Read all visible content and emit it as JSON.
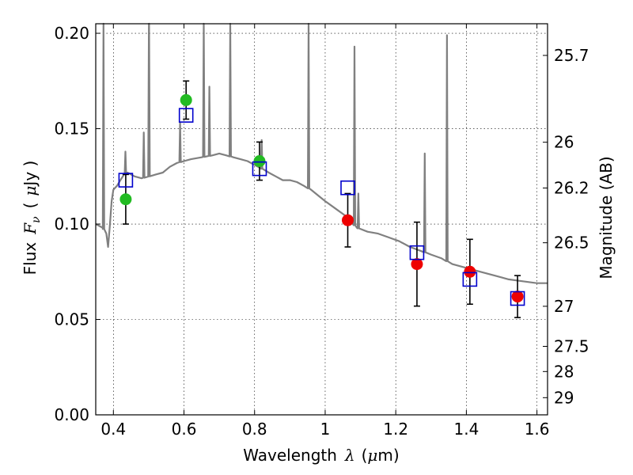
{
  "chart_data": {
    "type": "scatter",
    "title": "",
    "xlabel": {
      "prefix": "Wavelength",
      "symbol": "λ",
      "unit_open": "(",
      "unit_mu": "μ",
      "unit_rest": "m)"
    },
    "ylabel": {
      "prefix": "Flux",
      "symbol": "F",
      "subscript": "ν",
      "unit_open": "(",
      "unit_mu": "μ",
      "unit_rest": "Jy )"
    },
    "y2label": "Magnitude (AB)",
    "xlim": [
      0.35,
      1.63
    ],
    "ylim": [
      0.0,
      0.205
    ],
    "grid": true,
    "x_ticks": [
      {
        "v": 0.4,
        "label": "0.4"
      },
      {
        "v": 0.6,
        "label": "0.6"
      },
      {
        "v": 0.8,
        "label": "0.8"
      },
      {
        "v": 1.0,
        "label": "1"
      },
      {
        "v": 1.2,
        "label": "1.2"
      },
      {
        "v": 1.4,
        "label": "1.4"
      },
      {
        "v": 1.6,
        "label": "1.6"
      }
    ],
    "y_ticks": [
      {
        "v": 0.0,
        "label": "0.00"
      },
      {
        "v": 0.05,
        "label": "0.05"
      },
      {
        "v": 0.1,
        "label": "0.10"
      },
      {
        "v": 0.15,
        "label": "0.15"
      },
      {
        "v": 0.2,
        "label": "0.20"
      }
    ],
    "y2_ticks": [
      {
        "label": "25.7",
        "flux": 0.1884
      },
      {
        "label": "26",
        "flux": 0.1429
      },
      {
        "label": "26.2",
        "flux": 0.1189
      },
      {
        "label": "26.5",
        "flux": 0.0902
      },
      {
        "label": "27",
        "flux": 0.0569
      },
      {
        "label": "27.5",
        "flux": 0.0359
      },
      {
        "label": "28",
        "flux": 0.0227
      },
      {
        "label": "29",
        "flux": 0.009
      }
    ],
    "colors": {
      "model": "#808080",
      "green": "#22bb22",
      "red": "#ee0000",
      "box": "#0000cc",
      "error": "#000000"
    },
    "model_spectrum": {
      "name": "model",
      "x": [
        0.35,
        0.37,
        0.38,
        0.385,
        0.39,
        0.395,
        0.4,
        0.41,
        0.42,
        0.43,
        0.44,
        0.45,
        0.46,
        0.48,
        0.5,
        0.52,
        0.54,
        0.56,
        0.58,
        0.6,
        0.62,
        0.65,
        0.68,
        0.7,
        0.72,
        0.74,
        0.76,
        0.78,
        0.8,
        0.82,
        0.84,
        0.86,
        0.88,
        0.9,
        0.92,
        0.94,
        0.96,
        0.98,
        1.0,
        1.03,
        1.06,
        1.09,
        1.12,
        1.15,
        1.18,
        1.21,
        1.24,
        1.27,
        1.3,
        1.33,
        1.36,
        1.4,
        1.44,
        1.48,
        1.52,
        1.56,
        1.6,
        1.63
      ],
      "y": [
        0.1,
        0.098,
        0.095,
        0.088,
        0.099,
        0.112,
        0.118,
        0.12,
        0.123,
        0.126,
        0.127,
        0.126,
        0.125,
        0.124,
        0.125,
        0.126,
        0.127,
        0.13,
        0.132,
        0.133,
        0.134,
        0.135,
        0.136,
        0.137,
        0.136,
        0.135,
        0.134,
        0.133,
        0.131,
        0.129,
        0.127,
        0.125,
        0.123,
        0.123,
        0.122,
        0.12,
        0.118,
        0.115,
        0.112,
        0.108,
        0.104,
        0.098,
        0.096,
        0.095,
        0.093,
        0.091,
        0.088,
        0.086,
        0.084,
        0.082,
        0.079,
        0.077,
        0.075,
        0.073,
        0.071,
        0.07,
        0.069,
        0.069
      ],
      "emission_lines": [
        {
          "x": 0.372,
          "peak": 0.205
        },
        {
          "x": 0.434,
          "peak": 0.138
        },
        {
          "x": 0.486,
          "peak": 0.148
        },
        {
          "x": 0.501,
          "peak": 0.205
        },
        {
          "x": 0.5007,
          "peak": 0.205
        },
        {
          "x": 0.589,
          "peak": 0.153
        },
        {
          "x": 0.656,
          "peak": 0.205
        },
        {
          "x": 0.672,
          "peak": 0.172
        },
        {
          "x": 0.731,
          "peak": 0.205
        },
        {
          "x": 0.82,
          "peak": 0.144
        },
        {
          "x": 0.953,
          "peak": 0.205
        },
        {
          "x": 1.083,
          "peak": 0.193
        },
        {
          "x": 1.094,
          "peak": 0.116
        },
        {
          "x": 1.282,
          "peak": 0.137
        },
        {
          "x": 1.345,
          "peak": 0.199
        }
      ]
    },
    "observed": [
      {
        "x": 0.435,
        "y": 0.113,
        "err": 0.013,
        "color": "green"
      },
      {
        "x": 0.606,
        "y": 0.165,
        "err": 0.01,
        "color": "green"
      },
      {
        "x": 0.814,
        "y": 0.133,
        "err": 0.01,
        "color": "green"
      },
      {
        "x": 1.064,
        "y": 0.102,
        "err": 0.014,
        "color": "red"
      },
      {
        "x": 1.26,
        "y": 0.079,
        "err": 0.022,
        "color": "red"
      },
      {
        "x": 1.41,
        "y": 0.075,
        "err": 0.017,
        "color": "red"
      },
      {
        "x": 1.545,
        "y": 0.062,
        "err": 0.011,
        "color": "red"
      }
    ],
    "model_photometry": [
      {
        "x": 0.435,
        "y": 0.123
      },
      {
        "x": 0.606,
        "y": 0.157
      },
      {
        "x": 0.814,
        "y": 0.129
      },
      {
        "x": 1.064,
        "y": 0.119
      },
      {
        "x": 1.26,
        "y": 0.085
      },
      {
        "x": 1.41,
        "y": 0.071
      },
      {
        "x": 1.545,
        "y": 0.061
      }
    ]
  }
}
